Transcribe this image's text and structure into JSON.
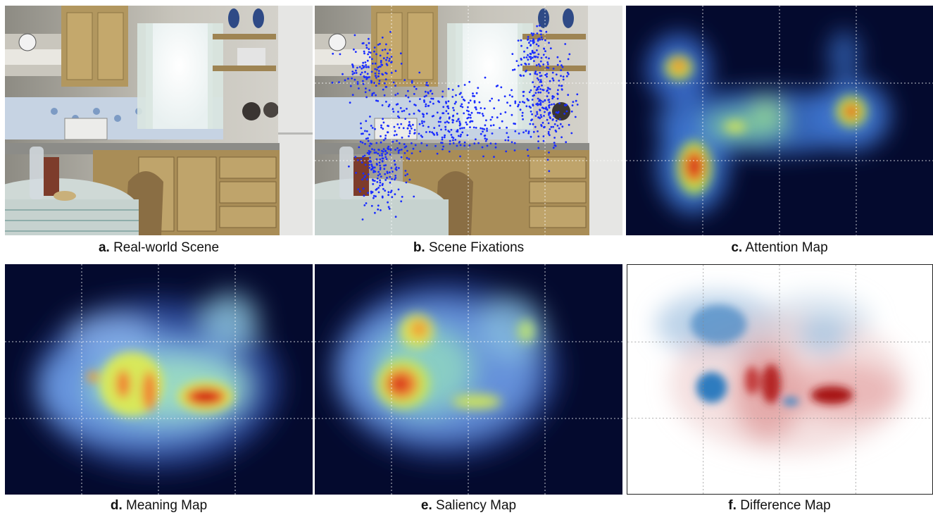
{
  "figure": {
    "panels": [
      {
        "id": "a",
        "letter": "a.",
        "caption": "Real-world Scene"
      },
      {
        "id": "b",
        "letter": "b.",
        "caption": "Scene Fixations"
      },
      {
        "id": "c",
        "letter": "c.",
        "caption": "Attention Map"
      },
      {
        "id": "d",
        "letter": "d.",
        "caption": "Meaning Map"
      },
      {
        "id": "e",
        "letter": "e.",
        "caption": "Saliency Map"
      },
      {
        "id": "f",
        "letter": "f.",
        "caption": "Difference Map"
      }
    ]
  },
  "colors": {
    "heatmap_background": "#040a2e",
    "fixation_dot": "#1a2cff",
    "difference_positive": "#b21e1e",
    "difference_negative": "#2f7bbf",
    "grid_line": "#ffffff"
  }
}
